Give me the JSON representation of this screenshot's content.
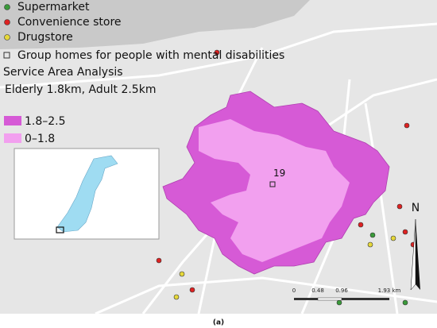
{
  "legend": {
    "items": [
      "Supermarket",
      "Convenience store",
      "Drugstore",
      "Group homes for people with mental disabilities"
    ],
    "title": "Service Area Analysis",
    "subtitle": "Elderly 1.8km, Adult 2.5km",
    "classes": [
      "1.8–2.5",
      "0–1.8"
    ]
  },
  "labels": {
    "site": "19",
    "north": "N"
  },
  "scale_bar": {
    "ticks": [
      "0",
      "0.48",
      "0.96",
      "1.93 km"
    ]
  },
  "caption": "(a)"
}
